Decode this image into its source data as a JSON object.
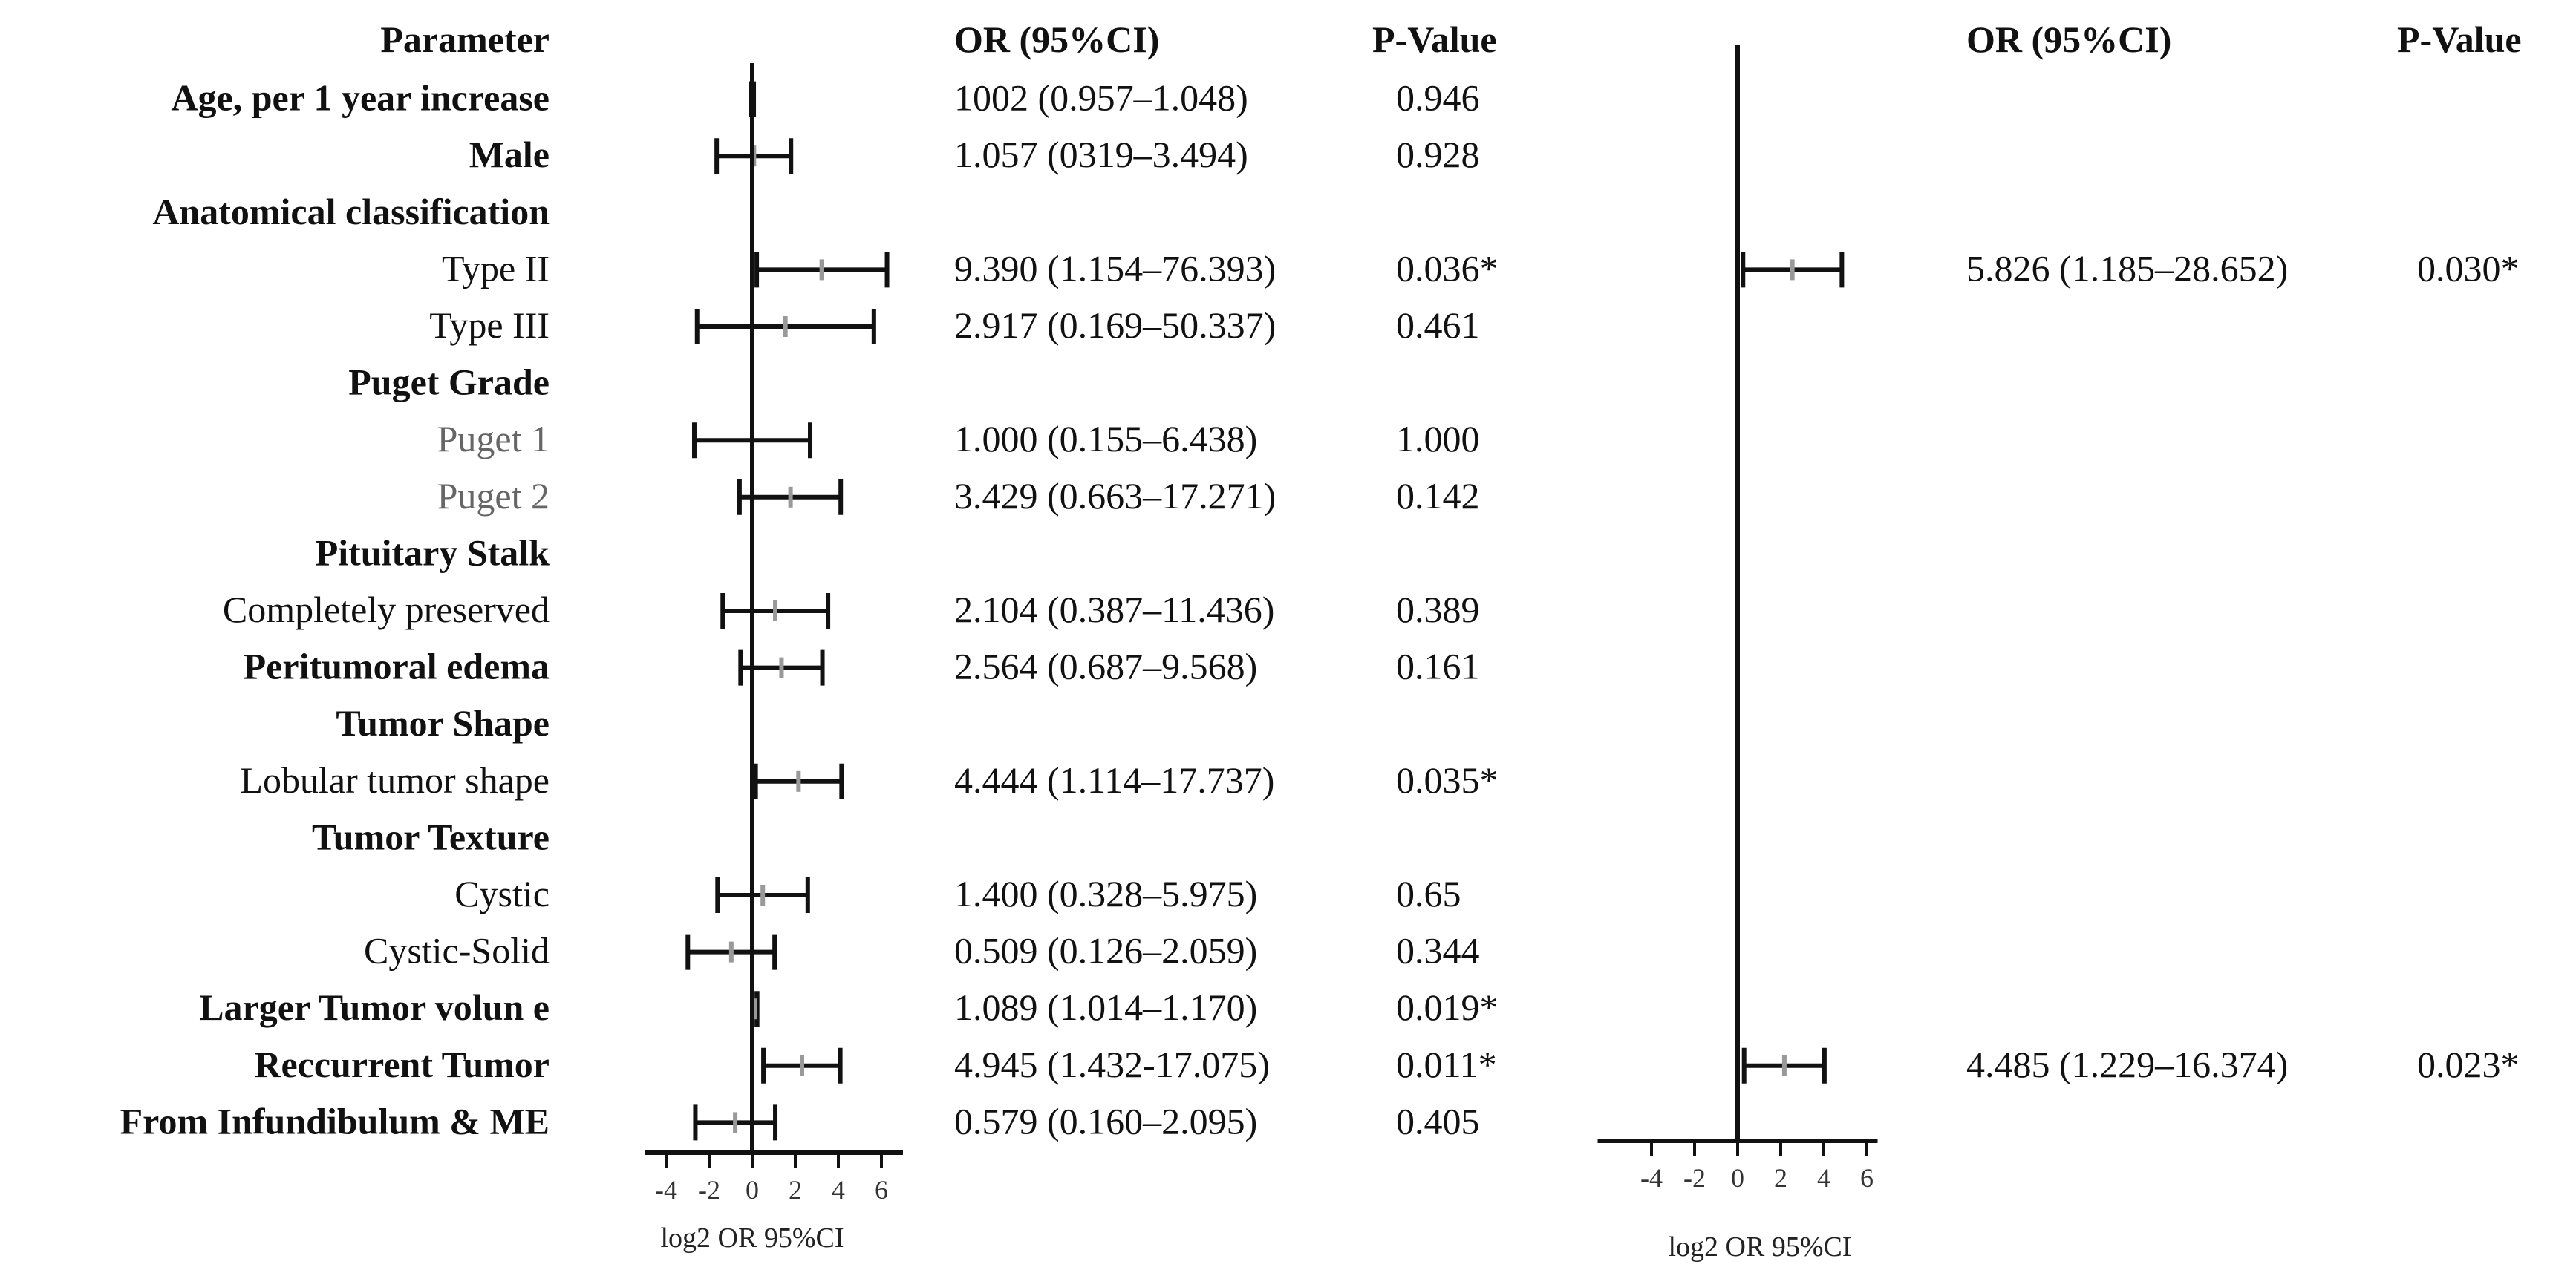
{
  "chart_data": [
    {
      "type": "forest",
      "headers": {
        "parameter": "Parameter",
        "or": "OR (95%CI)",
        "p": "P-Value"
      },
      "xlabel": "log2 OR 95%CI",
      "xticks": [
        "-4",
        "-2",
        "0",
        "2",
        "4",
        "6"
      ],
      "xlim": [
        -5,
        7
      ],
      "rows": [
        {
          "label": "Age, per 1 year increase",
          "bold": true,
          "or_text": "1002 (0.957–1.048)",
          "p": "0.946",
          "log2or": 0.0,
          "lo": -0.06,
          "hi": 0.07
        },
        {
          "label": "Male",
          "bold": true,
          "or_text": "1.057 (0319–3.494)",
          "p": "0.928",
          "log2or": 0.08,
          "lo": -1.65,
          "hi": 1.8
        },
        {
          "label": "Anatomical classification",
          "bold": true,
          "header": true
        },
        {
          "label": "Type II",
          "bold": false,
          "or_text": "9.390 (1.154–76.393)",
          "p": "0.036*",
          "log2or": 3.23,
          "lo": 0.21,
          "hi": 6.26
        },
        {
          "label": "Type III",
          "bold": false,
          "or_text": "2.917 (0.169–50.337)",
          "p": "0.461",
          "log2or": 1.54,
          "lo": -2.56,
          "hi": 5.65
        },
        {
          "label": "Puget Grade",
          "bold": true,
          "header": true
        },
        {
          "label": "Puget 1",
          "bold": false,
          "muted": true,
          "or_text": "1.000 (0.155–6.438)",
          "p": "1.000",
          "log2or": 0.0,
          "lo": -2.69,
          "hi": 2.69
        },
        {
          "label": "Puget 2",
          "bold": false,
          "muted": true,
          "or_text": "3.429 (0.663–17.271)",
          "p": "0.142",
          "log2or": 1.78,
          "lo": -0.59,
          "hi": 4.11
        },
        {
          "label": "Pituitary Stalk",
          "bold": true,
          "header": true
        },
        {
          "label": "Completely preserved",
          "bold": false,
          "or_text": "2.104 (0.387–11.436)",
          "p": "0.389",
          "log2or": 1.07,
          "lo": -1.37,
          "hi": 3.52
        },
        {
          "label": "Peritumoral edema",
          "bold": true,
          "or_text": "2.564 (0.687–9.568)",
          "p": "0.161",
          "log2or": 1.36,
          "lo": -0.54,
          "hi": 3.26
        },
        {
          "label": "Tumor Shape",
          "bold": true,
          "header": true
        },
        {
          "label": "Lobular tumor shape",
          "bold": false,
          "or_text": "4.444 (1.114–17.737)",
          "p": "0.035*",
          "log2or": 2.15,
          "lo": 0.16,
          "hi": 4.15
        },
        {
          "label": "Tumor Texture",
          "bold": true,
          "header": true
        },
        {
          "label": "Cystic",
          "bold": false,
          "or_text": "1.400 (0.328–5.975)",
          "p": "0.65",
          "log2or": 0.49,
          "lo": -1.61,
          "hi": 2.58
        },
        {
          "label": "Cystic-Solid",
          "bold": false,
          "or_text": "0.509 (0.126–2.059)",
          "p": "0.344",
          "log2or": -0.97,
          "lo": -2.99,
          "hi": 1.04
        },
        {
          "label": "Larger Tumor volun e",
          "bold": true,
          "or_text": "1.089 (1.014–1.170)",
          "p": "0.019*",
          "log2or": 0.12,
          "lo": 0.02,
          "hi": 0.23
        },
        {
          "label": "Reccurrent Tumor",
          "bold": true,
          "or_text": "4.945 (1.432-17.075)",
          "p": "0.011*",
          "log2or": 2.31,
          "lo": 0.52,
          "hi": 4.09
        },
        {
          "label": "From Infundibulum & ME",
          "bold": true,
          "or_text": "0.579 (0.160–2.095)",
          "p": "0.405",
          "log2or": -0.79,
          "lo": -2.64,
          "hi": 1.07
        }
      ]
    },
    {
      "type": "forest",
      "headers": {
        "or": "OR (95%CI)",
        "p": "P-Value"
      },
      "xlabel": "log2 OR 95%CI",
      "xticks": [
        "-4",
        "-2",
        "0",
        "2",
        "4",
        "6"
      ],
      "xlim": [
        -5,
        7
      ],
      "rows": [
        {
          "label": "Type II",
          "or_text": "5.826 (1.185–28.652)",
          "p": "0.030*",
          "log2or": 2.54,
          "lo": 0.25,
          "hi": 4.84
        },
        {
          "label": "Reccurrent Tumor",
          "or_text": "4.485 (1.229–16.374)",
          "p": "0.023*",
          "log2or": 2.17,
          "lo": 0.3,
          "hi": 4.03
        }
      ]
    }
  ]
}
